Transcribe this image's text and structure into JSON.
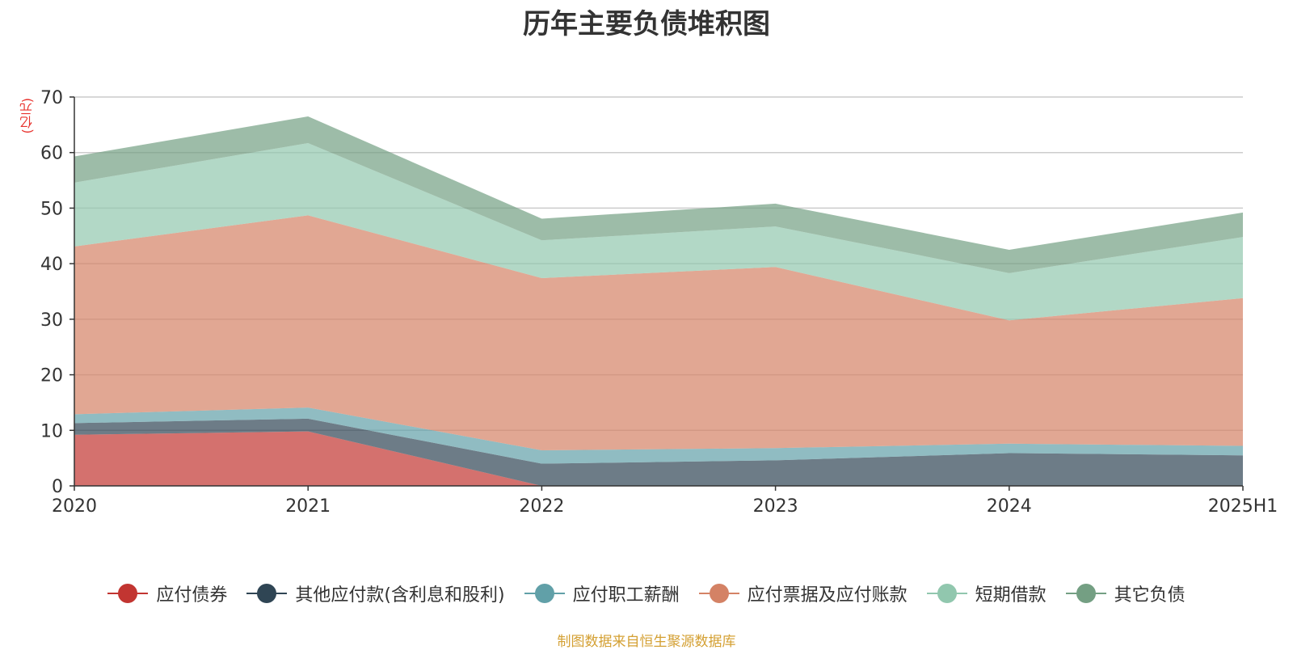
{
  "chart_data": {
    "type": "area",
    "stacked": true,
    "title": "历年主要负债堆积图",
    "unit_label": "(亿元)",
    "x": [
      "2020",
      "2021",
      "2022",
      "2023",
      "2024",
      "2025H1"
    ],
    "ylim": [
      0,
      70
    ],
    "yticks": [
      0,
      10,
      20,
      30,
      40,
      50,
      60,
      70
    ],
    "grid": true,
    "legend_position": "bottom",
    "series": [
      {
        "name": "应付债券",
        "color": "#c23531",
        "values": [
          9.2,
          9.8,
          0,
          0,
          0,
          0
        ]
      },
      {
        "name": "其他应付款(含利息和股利)",
        "color": "#2f4554",
        "values": [
          2.1,
          2.3,
          4.0,
          4.6,
          5.9,
          5.5
        ]
      },
      {
        "name": "应付职工薪酬",
        "color": "#61a0a8",
        "values": [
          1.6,
          2.0,
          2.4,
          2.2,
          1.7,
          1.7
        ]
      },
      {
        "name": "应付票据及应付账款",
        "color": "#d48265",
        "values": [
          30.2,
          34.6,
          31.0,
          32.6,
          22.2,
          26.6
        ]
      },
      {
        "name": "短期借款",
        "color": "#91c7ae",
        "values": [
          11.5,
          13.0,
          6.8,
          7.3,
          8.5,
          11.0
        ]
      },
      {
        "name": "其它负债",
        "color": "#749f83",
        "values": [
          4.7,
          4.8,
          3.9,
          4.1,
          4.2,
          4.4
        ]
      }
    ]
  },
  "source": "制图数据来自恒生聚源数据库"
}
